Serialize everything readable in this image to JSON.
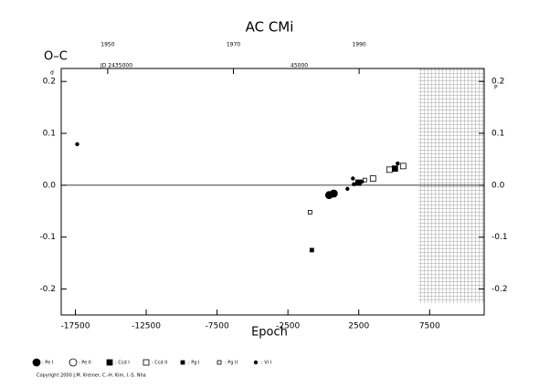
{
  "chart_data": {
    "type": "scatter",
    "title": "AC CMi",
    "y_label": "O–C",
    "x_label": "Epoch",
    "y_unit": "d",
    "y2_unit": "P",
    "annotations": [
      "JD 2435000",
      "45000"
    ],
    "copyright": "Copyright 2000 J.M. Kreiner, C.-H. Kim, I.-S. Nha",
    "xlim": [
      -18500,
      11350
    ],
    "xticks": [
      -17500,
      -12500,
      -7500,
      -2500,
      2500,
      7500
    ],
    "x2lim": [
      1942.6,
      2009.9
    ],
    "x2ticks": [
      1950,
      1970,
      1990
    ],
    "ylim": [
      -0.25,
      0.225
    ],
    "yticks": [
      0.2,
      0.1,
      {
        "value": 0,
        "label": "0.0"
      },
      -0.1,
      -0.2
    ],
    "y2lim": [
      -0.25,
      0.225
    ],
    "y2ticks": [
      0.2,
      0.1,
      {
        "value": 0,
        "label": "0.0"
      },
      -0.1,
      -0.2
    ],
    "series": [
      {
        "name": ": Pe I",
        "marker": "circle",
        "filled": true,
        "size": 4,
        "color": "#000",
        "x": [
          412,
          734
        ],
        "values": [
          -0.019,
          -0.016
        ]
      },
      {
        "name": ": Pe II",
        "marker": "circle",
        "filled": false,
        "size": 4,
        "color": "#000",
        "x": [],
        "values": []
      },
      {
        "name": ": Ccd I",
        "marker": "square",
        "filled": true,
        "size": 3,
        "color": "#000",
        "x": [
          2474,
          5052
        ],
        "values": [
          0.005,
          0.032
        ]
      },
      {
        "name": ": Ccd II",
        "marker": "square",
        "filled": false,
        "size": 3,
        "color": "#000",
        "x": [
          3505,
          4665,
          5632
        ],
        "values": [
          0.013,
          0.03,
          0.037
        ]
      },
      {
        "name": ": Pg I",
        "marker": "square",
        "filled": true,
        "size": 2,
        "color": "#000",
        "x": [
          -812
        ],
        "values": [
          -0.125
        ]
      },
      {
        "name": ": Pg II",
        "marker": "square",
        "filled": false,
        "size": 2,
        "color": "#000",
        "x": [
          -941,
          2925
        ],
        "values": [
          -0.052,
          0.01
        ]
      },
      {
        "name": ": Vi I",
        "marker": "circle",
        "filled": true,
        "size": 1.8,
        "color": "#000",
        "x": [
          -17371,
          1701,
          2088,
          2152,
          2732,
          5245
        ],
        "values": [
          0.079,
          -0.007,
          0.013,
          0.002,
          0.007,
          0.042
        ]
      }
    ]
  }
}
